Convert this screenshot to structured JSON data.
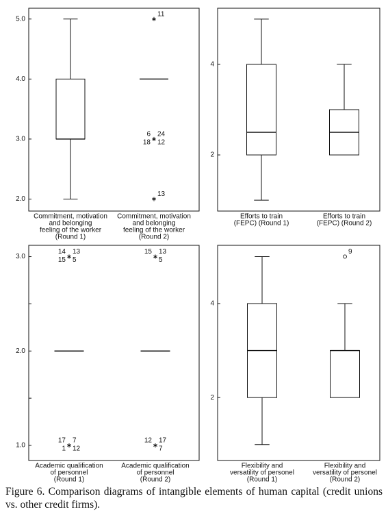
{
  "chart_data": [
    {
      "type": "box",
      "categories": [
        [
          "Commitment, motivation",
          "and belonging",
          "feeling of the worker",
          "(Round 1)"
        ],
        [
          "Commitment, motivation",
          "and belonging",
          "feeling of the worker",
          "(Round 2)"
        ]
      ],
      "boxes": [
        {
          "min": 2,
          "q1": 3,
          "median": 3,
          "q3": 4,
          "max": 5,
          "outliers": []
        },
        {
          "min": 4,
          "q1": 4,
          "median": 4,
          "q3": 4,
          "max": 4,
          "outliers": [
            {
              "value": 5,
              "marker": "star",
              "labels": [
                "11"
              ]
            },
            {
              "value": 3,
              "marker": "star",
              "labels": [
                "24",
                "6",
                "12",
                "18"
              ]
            },
            {
              "value": 2,
              "marker": "star",
              "labels": [
                "13"
              ]
            }
          ]
        }
      ],
      "ylim": [
        1.8,
        5.18
      ],
      "yticks": [
        {
          "value": 2,
          "label": "2.0"
        },
        {
          "value": 3,
          "label": "3.0"
        },
        {
          "value": 4,
          "label": "4.0"
        },
        {
          "value": 5,
          "label": "5.0"
        }
      ]
    },
    {
      "type": "box",
      "categories": [
        [
          "Efforts to train",
          "(FEPC) (Round 1)"
        ],
        [
          "Efforts to train",
          "(FEPC) (Round 2)"
        ]
      ],
      "boxes": [
        {
          "min": 1,
          "q1": 2,
          "median": 2.5,
          "q3": 4,
          "max": 5,
          "outliers": []
        },
        {
          "min": 2,
          "q1": 2,
          "median": 2.5,
          "q3": 3,
          "max": 4,
          "outliers": []
        }
      ],
      "ylim": [
        0.76,
        5.24
      ],
      "yticks": [
        2,
        4
      ]
    },
    {
      "type": "box",
      "categories": [
        [
          "Academic qualification",
          "of personnel",
          "(Round 1)"
        ],
        [
          "Academic qualification",
          "of personnel",
          "(Round 2)"
        ]
      ],
      "boxes": [
        {
          "min": 2,
          "q1": 2,
          "median": 2,
          "q3": 2,
          "max": 2,
          "outliers": [
            {
              "value": 3,
              "marker": "star",
              "labels": [
                "13",
                "14",
                "5",
                "15"
              ]
            },
            {
              "value": 1,
              "marker": "star",
              "labels": [
                "7",
                "17",
                "12",
                "1"
              ]
            }
          ]
        },
        {
          "min": 2,
          "q1": 2,
          "median": 2,
          "q3": 2,
          "max": 2,
          "outliers": [
            {
              "value": 3,
              "marker": "star",
              "labels": [
                "13",
                "15",
                "5"
              ]
            },
            {
              "value": 1,
              "marker": "star",
              "labels": [
                "17",
                "12",
                "7"
              ]
            }
          ]
        }
      ],
      "ylim": [
        0.84,
        3.12
      ],
      "yticks": [
        {
          "value": 1,
          "label": "1.0"
        },
        {
          "value": 2,
          "label": "2.0"
        },
        {
          "value": 3,
          "label": "3.0"
        }
      ],
      "minor_ticks": [
        1.5,
        2.5
      ]
    },
    {
      "type": "box",
      "categories": [
        [
          "Flexibility and",
          "versatility of personel",
          "(Round 1)"
        ],
        [
          "Flexibility and",
          "versatility of personel",
          "(Round 2)"
        ]
      ],
      "boxes": [
        {
          "min": 1,
          "q1": 2,
          "median": 3,
          "q3": 4,
          "max": 5,
          "outliers": []
        },
        {
          "min": 2,
          "q1": 2,
          "median": 3,
          "q3": 3,
          "max": 4,
          "outliers": [
            {
              "value": 5,
              "marker": "circle",
              "labels": [
                "9"
              ]
            }
          ]
        }
      ],
      "ylim": [
        0.66,
        5.24
      ],
      "yticks": [
        2,
        4
      ]
    }
  ],
  "caption": "Figure 6. Comparison diagrams of intangible elements of human capital (credit unions vs. other credit firms)."
}
